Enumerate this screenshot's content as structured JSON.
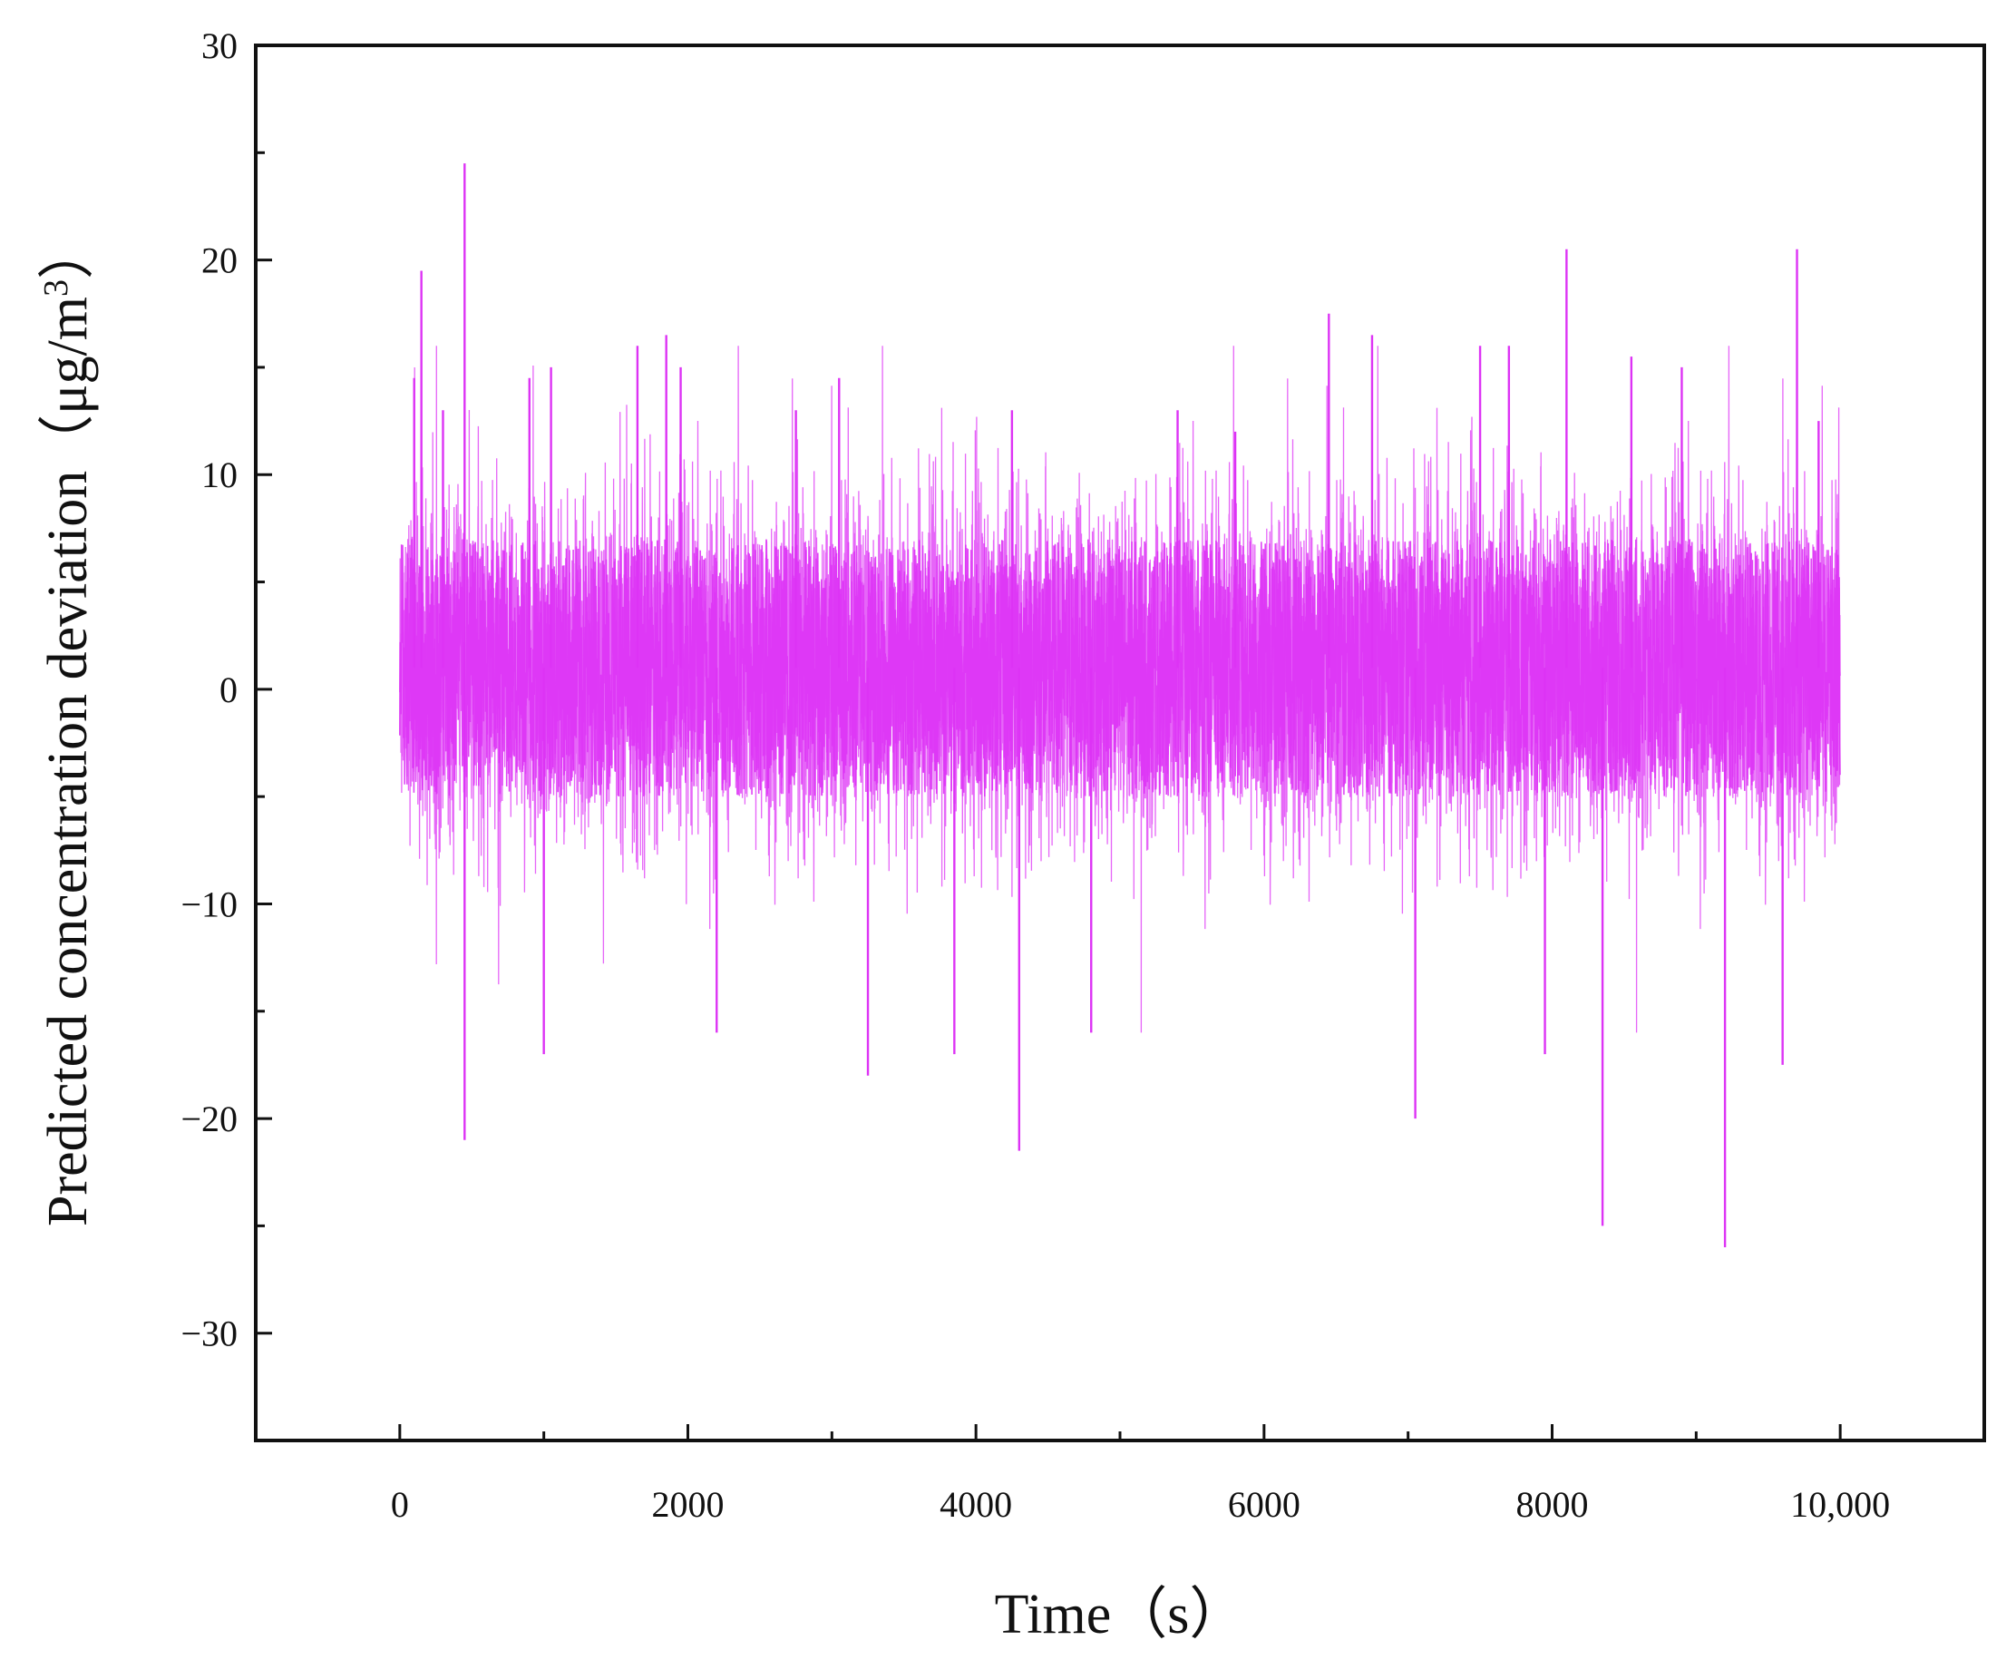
{
  "chart_data": {
    "type": "line",
    "title": "",
    "xlabel": "Time（s）",
    "ylabel_main": "Predicted concentration deviation（μg/m",
    "ylabel_sup": "3",
    "ylabel_end": "）",
    "xlim": [
      -1000,
      11000
    ],
    "ylim": [
      -35,
      30
    ],
    "xticks": [
      0,
      2000,
      4000,
      6000,
      8000,
      10000
    ],
    "xtick_labels": [
      "0",
      "2000",
      "4000",
      "6000",
      "8000",
      "10,000"
    ],
    "yticks": [
      -30,
      -20,
      -10,
      0,
      10,
      20,
      30
    ],
    "ytick_labels": [
      "−30",
      "−20",
      "−10",
      "0",
      "10",
      "20",
      "30"
    ],
    "grid": false,
    "legend": "none",
    "series": [
      {
        "color": "#dd33f5",
        "x_range": [
          0,
          10000
        ],
        "n_samples": 10000,
        "band": {
          "core_min": -5,
          "core_max": 7,
          "typical_min": -11,
          "typical_max": 11
        },
        "spikes": [
          {
            "x": 150,
            "y": 19.5
          },
          {
            "x": 450,
            "y": 24.5
          },
          {
            "x": 450,
            "y": -21
          },
          {
            "x": 100,
            "y": 14.5
          },
          {
            "x": 300,
            "y": 13
          },
          {
            "x": 900,
            "y": 14.5
          },
          {
            "x": 1000,
            "y": -17
          },
          {
            "x": 1050,
            "y": 15
          },
          {
            "x": 1650,
            "y": 16
          },
          {
            "x": 1850,
            "y": 16.5
          },
          {
            "x": 1950,
            "y": 15
          },
          {
            "x": 2200,
            "y": -16
          },
          {
            "x": 2750,
            "y": 13
          },
          {
            "x": 3050,
            "y": 14.5
          },
          {
            "x": 3250,
            "y": -18
          },
          {
            "x": 3850,
            "y": -17
          },
          {
            "x": 4250,
            "y": 13
          },
          {
            "x": 4300,
            "y": -21.5
          },
          {
            "x": 4800,
            "y": -16
          },
          {
            "x": 5400,
            "y": 13
          },
          {
            "x": 5800,
            "y": 12
          },
          {
            "x": 6450,
            "y": 17.5
          },
          {
            "x": 6750,
            "y": 16.5
          },
          {
            "x": 7050,
            "y": -20
          },
          {
            "x": 7500,
            "y": 16
          },
          {
            "x": 7700,
            "y": 16
          },
          {
            "x": 7950,
            "y": -17
          },
          {
            "x": 8100,
            "y": 20.5
          },
          {
            "x": 8350,
            "y": -25
          },
          {
            "x": 8550,
            "y": 15.5
          },
          {
            "x": 8900,
            "y": 15
          },
          {
            "x": 9200,
            "y": -26
          },
          {
            "x": 9600,
            "y": -17.5
          },
          {
            "x": 9700,
            "y": 20.5
          },
          {
            "x": 9850,
            "y": 12.5
          }
        ]
      }
    ]
  }
}
